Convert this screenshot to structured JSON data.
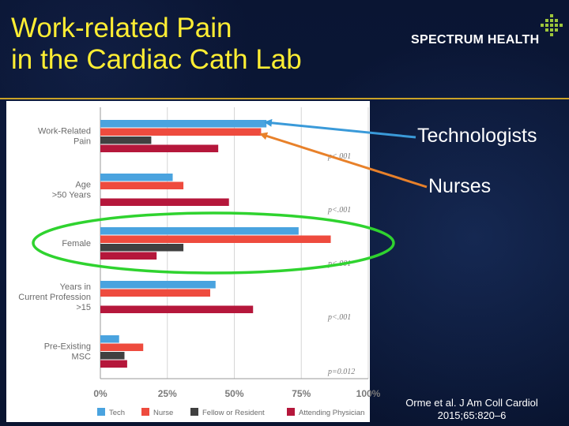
{
  "slide": {
    "title_line1": "Work-related Pain",
    "title_line2": "in the Cardiac Cath Lab",
    "logo_text": "SPECTRUM HEALTH",
    "callout_technologists": "Technologists",
    "callout_nurses": "Nurses",
    "citation_line1": "Orme et al. J Am Coll Cardiol",
    "citation_line2": "2015;65:820–6",
    "colors": {
      "background": "#08112a",
      "title": "#ffee33",
      "rule": "#c9a227",
      "arrow_technologists": "#3a9ad9",
      "arrow_nurses": "#e8812a",
      "highlight_ellipse": "#2fd32f"
    }
  },
  "chart_data": {
    "type": "bar",
    "orientation": "horizontal",
    "categories": [
      {
        "lines": [
          "Work-Related",
          "Pain"
        ],
        "p": "p<.001"
      },
      {
        "lines": [
          "Age",
          ">50 Years"
        ],
        "p": "p<.001"
      },
      {
        "lines": [
          "Female"
        ],
        "p": "p<.001"
      },
      {
        "lines": [
          "Years in",
          "Current Profession",
          ">15"
        ],
        "p": "p<.001"
      },
      {
        "lines": [
          "Pre-Existing",
          "MSC"
        ],
        "p": "p=0.012"
      }
    ],
    "series": [
      {
        "name": "Tech",
        "color": "#4aa3df",
        "values": [
          62,
          27,
          74,
          43,
          7
        ]
      },
      {
        "name": "Nurse",
        "color": "#ee4b3e",
        "values": [
          60,
          31,
          86,
          41,
          16
        ]
      },
      {
        "name": "Fellow or Resident",
        "color": "#404040",
        "values": [
          19,
          0,
          31,
          0,
          9
        ]
      },
      {
        "name": "Attending Physician",
        "color": "#b5173b",
        "values": [
          44,
          48,
          21,
          57,
          10
        ]
      }
    ],
    "xlim": [
      0,
      100
    ],
    "x_ticks": [
      "0%",
      "25%",
      "50%",
      "75%",
      "100%"
    ],
    "grid": true,
    "legend_position": "bottom"
  }
}
